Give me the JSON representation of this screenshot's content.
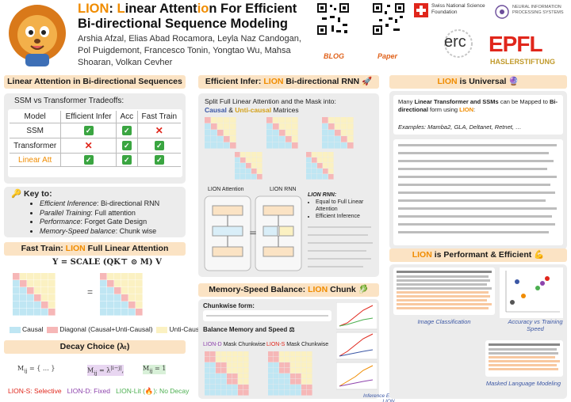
{
  "header": {
    "title_lion": "LION",
    "title_rest1": ": ",
    "title_L": "L",
    "title_inear": "inear Attent",
    "title_io": "io",
    "title_n": "n For Efficient",
    "title_line2": "Bi-directional Sequence Modeling",
    "authors": "Arshia Afzal, Elias Abad Rocamora, Leyla Naz Candogan, Pol Puigdemont, Francesco Tonin, Yongtao Wu, Mahsa Shoaran, Volkan Cevher",
    "qr_blog_label": "BLOG",
    "qr_paper_label": "Paper",
    "logo_snsf": "Swiss National Science Foundation",
    "logo_neurips": "NEURAL INFORMATION PROCESSING SYSTEMS",
    "logo_erc": "erc",
    "logo_epfl": "EPFL",
    "logo_hasler": "HASLERSTIFTUNG"
  },
  "col1": {
    "sec1_title": "Linear Attention in Bi-directional Sequences",
    "tradeoffs_title": "SSM vs Transformer Tradeoffs:",
    "table": {
      "headers": [
        "Model",
        "Efficient Infer",
        "Acc",
        "Fast Train"
      ],
      "rows": [
        {
          "model": "SSM",
          "cells": [
            "ok",
            "ok",
            "no"
          ]
        },
        {
          "model": "Transformer",
          "cells": [
            "no",
            "ok",
            "ok"
          ]
        },
        {
          "model": "Linear Att",
          "cells": [
            "ok",
            "ok",
            "ok"
          ]
        }
      ]
    },
    "key_title": "Key to:",
    "key_items": [
      {
        "em": "Efficient Inference",
        "rest": ": Bi-directional RNN"
      },
      {
        "em": "Parallel Training",
        "rest": ": Full attention"
      },
      {
        "em": "Performance",
        "rest": ": Forget Gate Design"
      },
      {
        "em": "Memory-Speed balance",
        "rest": ": Chunk wise"
      }
    ],
    "sec2_pre": "Fast Train: ",
    "sec2_lion": "LION",
    "sec2_post": " Full Linear Attention",
    "equation": "Y = SCALE (QK⊤ ⊙ M) V",
    "legend_causal": "Causal",
    "legend_diag": "Diagonal (Causal+Unti-Causal)",
    "legend_unti": "Unti-Causal",
    "sec3_title": "Decay Choice (λₜ)",
    "decay_s": "LION-S: Selective",
    "decay_d": "LION-D: Fixed",
    "decay_lit": "LION-Lit (🔥): No Decay"
  },
  "col2": {
    "sec1_pre": "Efficient Infer: ",
    "sec1_lion": "LION",
    "sec1_post": " Bi-directional RNN",
    "split_line1": "Split Full Linear Attention and the Mask into:",
    "split_causal": "Causal",
    "split_amp": " & ",
    "split_unti": "Unti-causal",
    "split_end": " Matrices",
    "lion_attention": "LION Attention",
    "lion_rnn": "LION RNN",
    "rnn_title": "LION RNN:",
    "rnn_items": [
      "Equal to Full Linear Attention",
      "Efficient Inference"
    ],
    "sec2_pre": "Memory-Speed Balance: ",
    "sec2_lion": "LION",
    "sec2_post": " Chunk",
    "chunk_form": "Chunkwise form:",
    "balance": "Balance Memory and Speed",
    "mask_d": "LION-D Mask Chunkwise",
    "mask_s": "LION-S Mask Chunkwise",
    "inference_caption": "Inference Efficiency of LION"
  },
  "col3": {
    "sec1_pre": "",
    "sec1_lion": "LION",
    "sec1_post": " is Universal",
    "universal_text_1": "Many ",
    "universal_bold_1": "Linear Transformer and SSMs",
    "universal_text_2": " can be Mapped to ",
    "universal_bold_2": "Bi-directional",
    "universal_text_3": " form using ",
    "universal_lion": "LION",
    "universal_text_4": ":",
    "examples": "Examples: Mamba2, GLA, Deltanet, Retnet, …",
    "sec2_lion": "LION",
    "sec2_post": " is Performant & Efficient",
    "image_caption": "Image Classification",
    "acc_caption": "Accuracy vs Training Speed",
    "mlm_caption": "Masked Language Modeling"
  },
  "colors": {
    "accent_orange": "#f08c00",
    "banner_bg": "#fbe3c4",
    "panel_bg": "#ececec",
    "causal_blue": "#bfe6f3",
    "diag_pink": "#f6b7b7",
    "unti_yellow": "#fbf1c2",
    "lion_s_red": "#e0261b",
    "lion_d_purple": "#8e44ad",
    "lion_lit_green": "#4caf50",
    "link_blue": "#3b57a5"
  }
}
